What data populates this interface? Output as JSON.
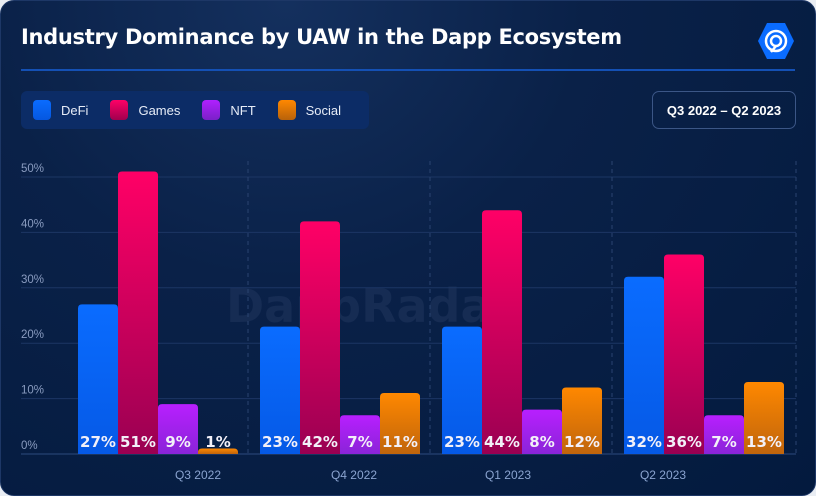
{
  "header": {
    "title": "Industry Dominance by UAW in the Dapp Ecosystem",
    "logo": "dappradar-logo-icon",
    "date_range": "Q3 2022 – Q2 2023"
  },
  "watermark": "DappRadar",
  "colors": {
    "DeFi": "#0a6cff",
    "Games": "#ff0066",
    "NFT": "#b020ff",
    "Social": "#ff8800",
    "background": "#031a3e"
  },
  "chart_data": {
    "type": "bar",
    "title": "Industry Dominance by UAW in the Dapp Ecosystem",
    "categories": [
      "Q3 2022",
      "Q4 2022",
      "Q1 2023",
      "Q2 2023"
    ],
    "series": [
      {
        "name": "DeFi",
        "values": [
          27,
          23,
          23,
          32
        ],
        "labels": [
          "27%",
          "23%",
          "23%",
          "32%"
        ]
      },
      {
        "name": "Games",
        "values": [
          51,
          42,
          44,
          36
        ],
        "labels": [
          "51%",
          "42%",
          "44%",
          "36%"
        ]
      },
      {
        "name": "NFT",
        "values": [
          9,
          7,
          8,
          7
        ],
        "labels": [
          "9%",
          "7%",
          "8%",
          "7%"
        ]
      },
      {
        "name": "Social",
        "values": [
          1,
          11,
          12,
          13
        ],
        "labels": [
          "1%",
          "11%",
          "12%",
          "13%"
        ]
      }
    ],
    "yticks": [
      "0%",
      "10%",
      "20%",
      "30%",
      "40%",
      "50%"
    ],
    "ylim": [
      0,
      50
    ],
    "xlabel": "",
    "ylabel": "",
    "grid": true,
    "legend": "top-left"
  }
}
